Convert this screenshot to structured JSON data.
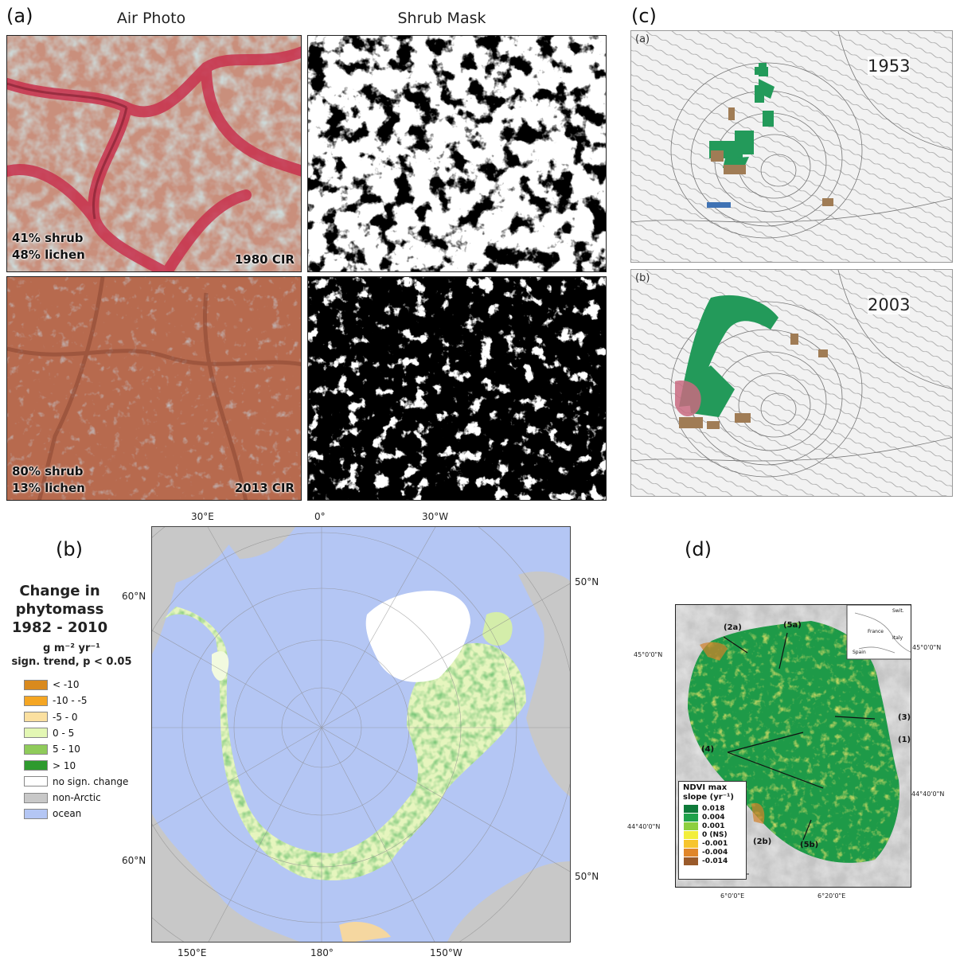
{
  "panels": {
    "a": {
      "letter": "(a)",
      "col_air": "Air Photo",
      "col_mask": "Shrub Mask",
      "top": {
        "shrub": "41% shrub",
        "lichen": "48% lichen",
        "label": "1980 CIR"
      },
      "bottom": {
        "shrub": "80% shrub",
        "lichen": "13% lichen",
        "label": "2013 CIR"
      }
    },
    "b": {
      "letter": "(b)",
      "legend_title_1": "Change in",
      "legend_title_2": "phytomass",
      "legend_title_3": "1982 - 2010",
      "legend_units": "g m⁻² yr⁻¹",
      "legend_sig": "sign. trend, p < 0.05",
      "legend": [
        {
          "label": "< -10",
          "color": "#d98a1e"
        },
        {
          "label": "-10 - -5",
          "color": "#f5a623"
        },
        {
          "label": "-5 - 0",
          "color": "#fbe0a0"
        },
        {
          "label": "0 - 5",
          "color": "#e3f7b4"
        },
        {
          "label": "5 - 10",
          "color": "#8fcb5a"
        },
        {
          "label": "> 10",
          "color": "#2e9a2e"
        },
        {
          "label": "no sign. change",
          "color": "#ffffff"
        },
        {
          "label": "non-Arctic",
          "color": "#c8c8c8"
        },
        {
          "label": "ocean",
          "color": "#b4c6f4"
        }
      ],
      "lon_top": [
        "30°E",
        "0°",
        "30°W"
      ],
      "lon_bottom": [
        "150°E",
        "180°",
        "150°W"
      ],
      "lat_left": [
        "60°N",
        "60°N"
      ],
      "lat_right": [
        "50°N",
        "50°N"
      ]
    },
    "c": {
      "letter": "(c)",
      "sub_a": "(a)",
      "sub_b": "(b)",
      "year_top": "1953",
      "year_bottom": "2003"
    },
    "d": {
      "letter": "(d)",
      "lat_labels": [
        "45°0'0\"N",
        "45°0'0\"N",
        "44°40'0\"N",
        "44°40'0\"N"
      ],
      "lon_labels": [
        "6°0'0\"E",
        "6°20'0\"E"
      ],
      "callouts": [
        "(2a)",
        "(5a)",
        "(3)",
        "(1)",
        "(4)",
        "(2b)",
        "(5b)"
      ],
      "inset_labels": [
        "France",
        "Italy",
        "Spain",
        "Swit."
      ],
      "legend_title": "NDVI max slope (yr⁻¹)",
      "legend": [
        {
          "label": "0.018",
          "color": "#0e7a3a"
        },
        {
          "label": "0.004",
          "color": "#1fa24b"
        },
        {
          "label": "0.001",
          "color": "#8dcf3f"
        },
        {
          "label": "0 (NS)",
          "color": "#f2ee3a"
        },
        {
          "label": "-0.001",
          "color": "#f7c52e"
        },
        {
          "label": "-0.004",
          "color": "#e0862a"
        },
        {
          "label": "-0.014",
          "color": "#9a5a2a"
        }
      ]
    }
  }
}
